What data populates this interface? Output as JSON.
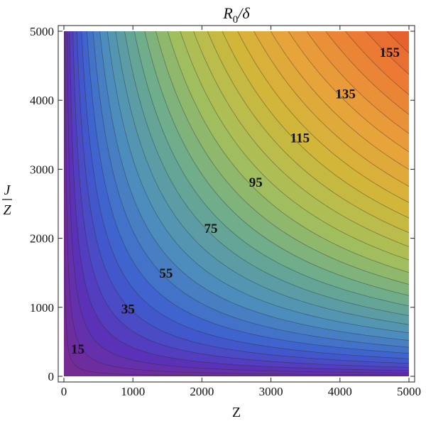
{
  "chart_data": {
    "type": "contour",
    "title_main": "R",
    "title_sub": "0",
    "title_rest": "/δ",
    "xlabel": "Z",
    "ylabel_num": "J",
    "ylabel_den": "Z",
    "xlim": [
      0,
      5000
    ],
    "ylim": [
      0,
      5000
    ],
    "x_ticks": [
      0,
      1000,
      2000,
      3000,
      4000,
      5000
    ],
    "y_ticks": [
      0,
      1000,
      2000,
      3000,
      4000,
      5000
    ],
    "x_tick_labels": [
      "0",
      "1000",
      "2000",
      "3000",
      "4000",
      "5000"
    ],
    "y_tick_labels": [
      "0",
      "1000",
      "2000",
      "3000",
      "4000",
      "5000"
    ],
    "contour_levels": [
      5,
      10,
      15,
      20,
      25,
      30,
      35,
      40,
      45,
      50,
      55,
      60,
      65,
      70,
      75,
      80,
      85,
      90,
      95,
      100,
      105,
      110,
      115,
      120,
      125,
      130,
      135,
      140,
      145,
      150,
      155,
      160
    ],
    "contour_labels": [
      {
        "text": "15",
        "x": 200,
        "y": 400
      },
      {
        "text": "35",
        "x": 930,
        "y": 980
      },
      {
        "text": "55",
        "x": 1480,
        "y": 1500
      },
      {
        "text": "75",
        "x": 2130,
        "y": 2150
      },
      {
        "text": "95",
        "x": 2780,
        "y": 2820
      },
      {
        "text": "115",
        "x": 3420,
        "y": 3460
      },
      {
        "text": "135",
        "x": 4080,
        "y": 4100
      },
      {
        "text": "155",
        "x": 4720,
        "y": 4700
      }
    ],
    "value_model": "value ≈ 0.031 · sqrt(Z · J/Z)",
    "colormap": [
      "#7a2a8c",
      "#5a32b8",
      "#3d5fd0",
      "#4d8fbd",
      "#6aab8f",
      "#a6c05a",
      "#d0b73a",
      "#e9a23a",
      "#ec7b35",
      "#e34e2a"
    ],
    "grid": false,
    "legend": "none"
  }
}
